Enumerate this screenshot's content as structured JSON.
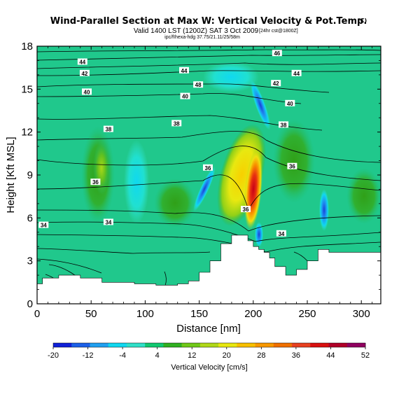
{
  "chart_data": {
    "type": "heatmap",
    "title": "Wind-Parallel Section at Max W: Vertical Velocity & Pot.Temp.",
    "title_mark": "(C)",
    "subtitle": "Valid 1400 LST (1200Z) SAT 3 Oct 2009",
    "subtitle_note": "[24hr cst@1800Z]",
    "subtitle2": "ipc/fIhexa-hdg 37.75/21.11/25/58m",
    "xlabel": "Distance [nm]",
    "ylabel": "Height [Kft MSL]",
    "xlim": [
      0,
      318
    ],
    "ylim": [
      0,
      18
    ],
    "xticks": [
      0,
      50,
      100,
      150,
      200,
      250,
      300
    ],
    "yticks": [
      0,
      3,
      6,
      9,
      12,
      15,
      18
    ],
    "colorbar": {
      "label": "Vertical Velocity [cm/s]",
      "ticks": [
        -20,
        -12,
        -4,
        4,
        12,
        20,
        28,
        36,
        44,
        52
      ],
      "colors": [
        "#1020d8",
        "#1c60e8",
        "#20a0f0",
        "#10d8f0",
        "#30e0c8",
        "#10c870",
        "#30b020",
        "#70c818",
        "#b0d818",
        "#e8e810",
        "#f8c000",
        "#f89800",
        "#f07000",
        "#e84020",
        "#d81010",
        "#b00028",
        "#900060"
      ]
    },
    "terrain": [
      [
        0,
        1.4
      ],
      [
        5,
        1.8
      ],
      [
        20,
        2.0
      ],
      [
        40,
        1.8
      ],
      [
        60,
        1.5
      ],
      [
        70,
        1.5
      ],
      [
        90,
        1.4
      ],
      [
        110,
        1.3
      ],
      [
        130,
        1.4
      ],
      [
        140,
        1.6
      ],
      [
        150,
        2.2
      ],
      [
        160,
        3.0
      ],
      [
        170,
        4.2
      ],
      [
        180,
        4.8
      ],
      [
        190,
        4.8
      ],
      [
        195,
        4.4
      ],
      [
        200,
        4.0
      ],
      [
        205,
        3.8
      ],
      [
        210,
        3.6
      ],
      [
        215,
        3.2
      ],
      [
        220,
        2.6
      ],
      [
        230,
        2.0
      ],
      [
        240,
        2.4
      ],
      [
        250,
        3.0
      ],
      [
        260,
        3.8
      ],
      [
        270,
        3.6
      ],
      [
        280,
        3.6
      ],
      [
        300,
        3.6
      ],
      [
        318,
        3.6
      ]
    ],
    "contour_labels": [
      {
        "x": 42,
        "y": 16.9,
        "text": "44"
      },
      {
        "x": 44,
        "y": 16.1,
        "text": "42"
      },
      {
        "x": 46,
        "y": 14.8,
        "text": "40"
      },
      {
        "x": 66,
        "y": 12.2,
        "text": "38"
      },
      {
        "x": 54,
        "y": 8.5,
        "text": "36"
      },
      {
        "x": 6,
        "y": 5.5,
        "text": "34"
      },
      {
        "x": 66,
        "y": 5.7,
        "text": "34"
      },
      {
        "x": 136,
        "y": 16.3,
        "text": "44"
      },
      {
        "x": 149,
        "y": 15.3,
        "text": "48"
      },
      {
        "x": 137,
        "y": 14.5,
        "text": "40"
      },
      {
        "x": 129,
        "y": 12.6,
        "text": "38"
      },
      {
        "x": 158,
        "y": 9.5,
        "text": "36"
      },
      {
        "x": 193,
        "y": 6.6,
        "text": "36"
      },
      {
        "x": 222,
        "y": 17.5,
        "text": "46"
      },
      {
        "x": 240,
        "y": 16.1,
        "text": "44"
      },
      {
        "x": 221,
        "y": 15.4,
        "text": "42"
      },
      {
        "x": 234,
        "y": 14.0,
        "text": "40"
      },
      {
        "x": 228,
        "y": 12.5,
        "text": "38"
      },
      {
        "x": 236,
        "y": 9.6,
        "text": "36"
      },
      {
        "x": 226,
        "y": 4.9,
        "text": "34"
      }
    ]
  }
}
